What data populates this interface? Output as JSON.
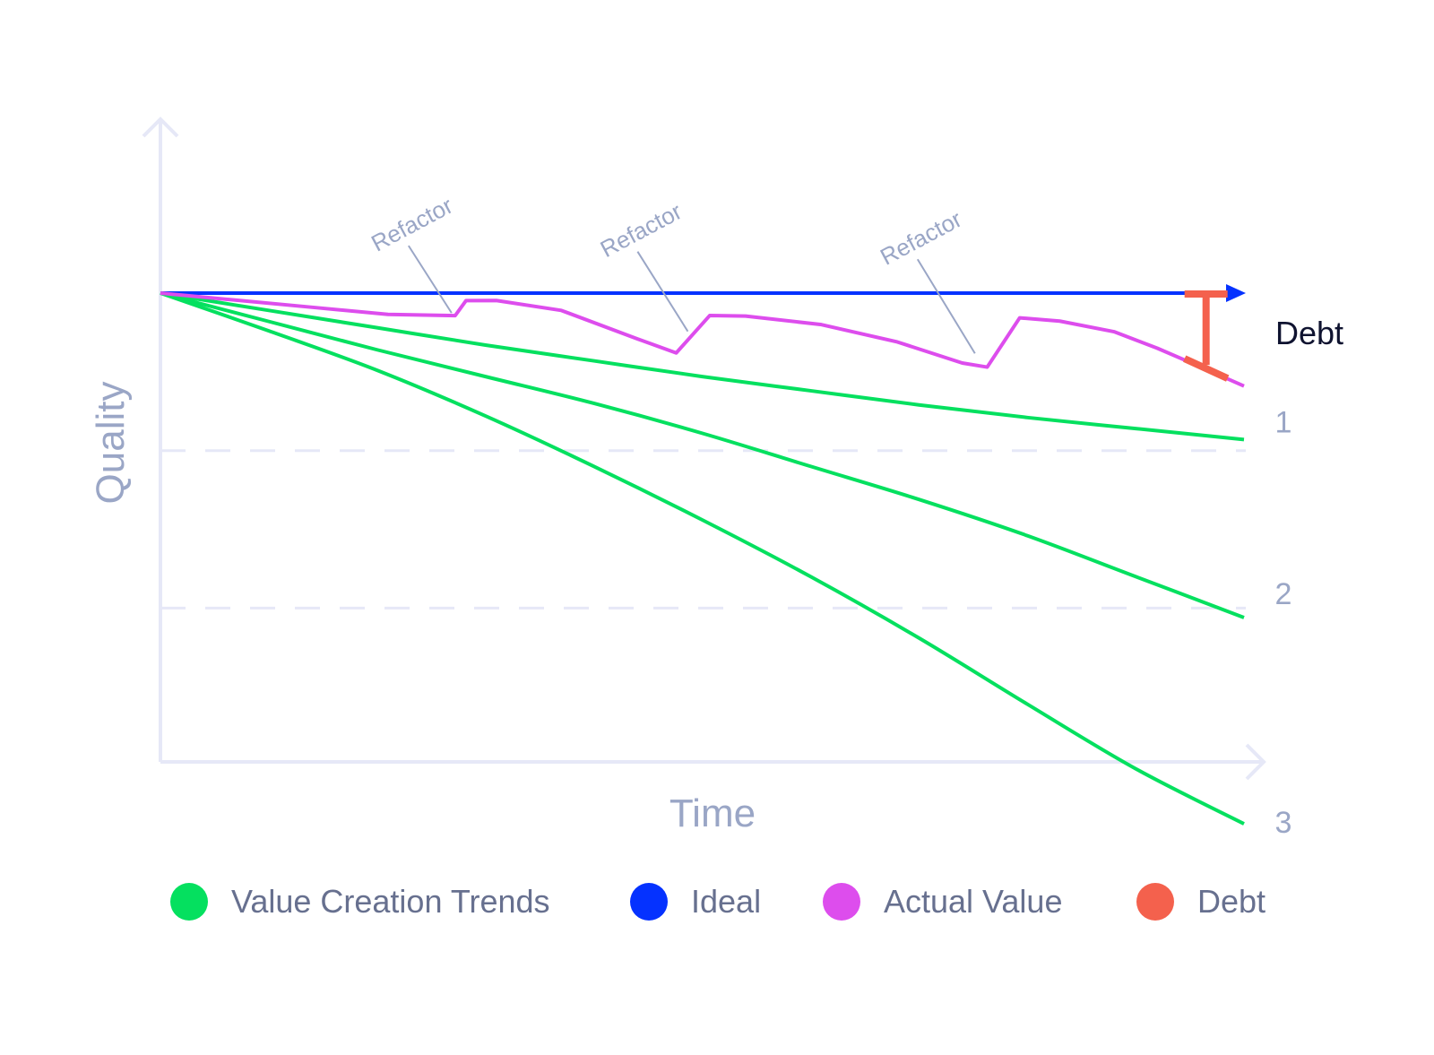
{
  "chart_data": {
    "type": "line",
    "xlabel": "Time",
    "ylabel": "Quality",
    "xlim": [
      0,
      100
    ],
    "ylim": [
      -60,
      20
    ],
    "grid_y": [
      -10,
      -20
    ],
    "colors": {
      "axis": "#e6e8f7",
      "axis_text": "#9aa6c6",
      "trend": "#05e05f",
      "ideal": "#0532ff",
      "actual": "#dd4ded",
      "debt": "#f4614d",
      "annotation_line": "#9aa6c6",
      "legend_text": "#67708f",
      "debt_label": "#0f1330"
    },
    "series": [
      {
        "name": "Ideal",
        "role": "ideal",
        "x": [
          0,
          100
        ],
        "y": [
          0,
          0
        ]
      },
      {
        "name": "Value Creation Trends",
        "role": "trend",
        "label": "1",
        "x": [
          0,
          10,
          20,
          30,
          40,
          50,
          60,
          70,
          80,
          90,
          100
        ],
        "y": [
          0,
          -1.1,
          -2.2,
          -3.3,
          -4.3,
          -5.3,
          -6.2,
          -7.1,
          -7.9,
          -8.6,
          -9.3
        ]
      },
      {
        "name": "Value Creation Trends",
        "role": "trend",
        "label": "2",
        "x": [
          0,
          10,
          20,
          30,
          40,
          50,
          60,
          70,
          80,
          90,
          100
        ],
        "y": [
          0,
          -1.8,
          -3.6,
          -5.3,
          -7.0,
          -8.9,
          -11.0,
          -13.1,
          -15.4,
          -18.0,
          -20.6
        ]
      },
      {
        "name": "Value Creation Trends",
        "role": "trend",
        "label": "3",
        "x": [
          0,
          10,
          20,
          30,
          40,
          50,
          60,
          70,
          80,
          90,
          100
        ],
        "y": [
          0,
          -2.4,
          -4.9,
          -7.8,
          -11.0,
          -14.4,
          -18.0,
          -21.9,
          -26.1,
          -30.2,
          -33.7
        ]
      },
      {
        "name": "Actual Value",
        "role": "actual",
        "x": [
          0,
          7,
          14,
          21,
          27.2,
          28.2,
          31,
          37,
          44,
          47.6,
          50.7,
          54,
          61,
          68,
          74,
          76.3,
          79.3,
          83,
          88,
          92,
          95.2,
          100
        ],
        "y": [
          0,
          -0.45,
          -0.9,
          -1.35,
          -1.43,
          -0.48,
          -0.47,
          -1.1,
          -2.9,
          -3.8,
          -1.42,
          -1.46,
          -2.0,
          -3.1,
          -4.44,
          -4.7,
          -1.57,
          -1.78,
          -2.45,
          -3.5,
          -4.45,
          -5.9
        ]
      }
    ],
    "annotations": [
      {
        "text": "Refactor",
        "x": 27.2,
        "y": -1.43
      },
      {
        "text": "Refactor",
        "x": 49.0,
        "y": -2.6
      },
      {
        "text": "Refactor",
        "x": 75.5,
        "y": -4.0
      }
    ],
    "debt_marker": {
      "x": 96.5,
      "y_top": 0,
      "y_bottom": -4.9,
      "label": "Debt"
    },
    "legend": {
      "placement": "bottom",
      "items": [
        {
          "label": "Value Creation Trends",
          "color": "#05e05f"
        },
        {
          "label": "Ideal",
          "color": "#0532ff"
        },
        {
          "label": "Actual Value",
          "color": "#dd4ded"
        },
        {
          "label": "Debt",
          "color": "#f4614d"
        }
      ]
    }
  }
}
